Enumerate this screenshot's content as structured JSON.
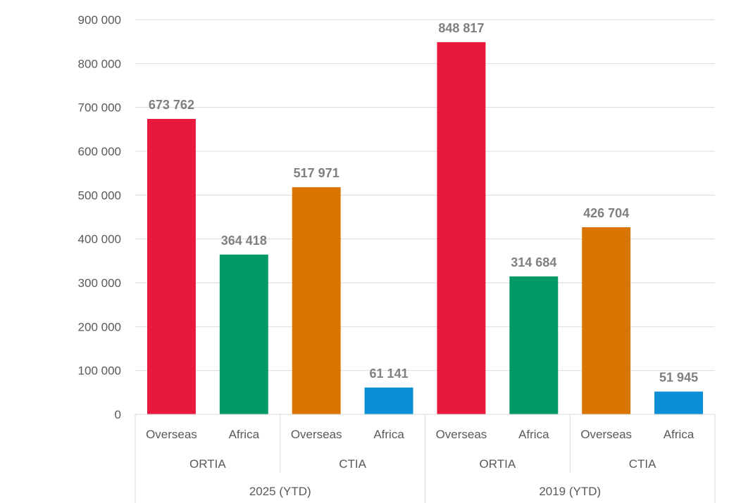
{
  "chart_data": {
    "type": "bar",
    "title": "",
    "xlabel": "",
    "ylabel": "",
    "ylim": [
      0,
      900000
    ],
    "yticks": [
      0,
      100000,
      200000,
      300000,
      400000,
      500000,
      600000,
      700000,
      800000,
      900000
    ],
    "ytick_labels": [
      "0",
      "100 000",
      "200 000",
      "300 000",
      "400 000",
      "500 000",
      "600 000",
      "700 000",
      "800 000",
      "900 000"
    ],
    "grid": true,
    "legend": "none",
    "groups": [
      {
        "label": "2025 (YTD)",
        "subgroups": [
          {
            "label": "ORTIA",
            "bars": [
              {
                "label": "Overseas",
                "value": 673762,
                "value_label": "673 762",
                "color": "#e8193c"
              },
              {
                "label": "Africa",
                "value": 364418,
                "value_label": "364 418",
                "color": "#009966"
              }
            ]
          },
          {
            "label": "CTIA",
            "bars": [
              {
                "label": "Overseas",
                "value": 517971,
                "value_label": "517 971",
                "color": "#d97400"
              },
              {
                "label": "Africa",
                "value": 61141,
                "value_label": "61 141",
                "color": "#0b8fd6"
              }
            ]
          }
        ]
      },
      {
        "label": "2019 (YTD)",
        "subgroups": [
          {
            "label": "ORTIA",
            "bars": [
              {
                "label": "Overseas",
                "value": 848817,
                "value_label": "848 817",
                "color": "#e8193c"
              },
              {
                "label": "Africa",
                "value": 314684,
                "value_label": "314 684",
                "color": "#009966"
              }
            ]
          },
          {
            "label": "CTIA",
            "bars": [
              {
                "label": "Overseas",
                "value": 426704,
                "value_label": "426 704",
                "color": "#d97400"
              },
              {
                "label": "Africa",
                "value": 51945,
                "value_label": "51 945",
                "color": "#0b8fd6"
              }
            ]
          }
        ]
      }
    ]
  }
}
